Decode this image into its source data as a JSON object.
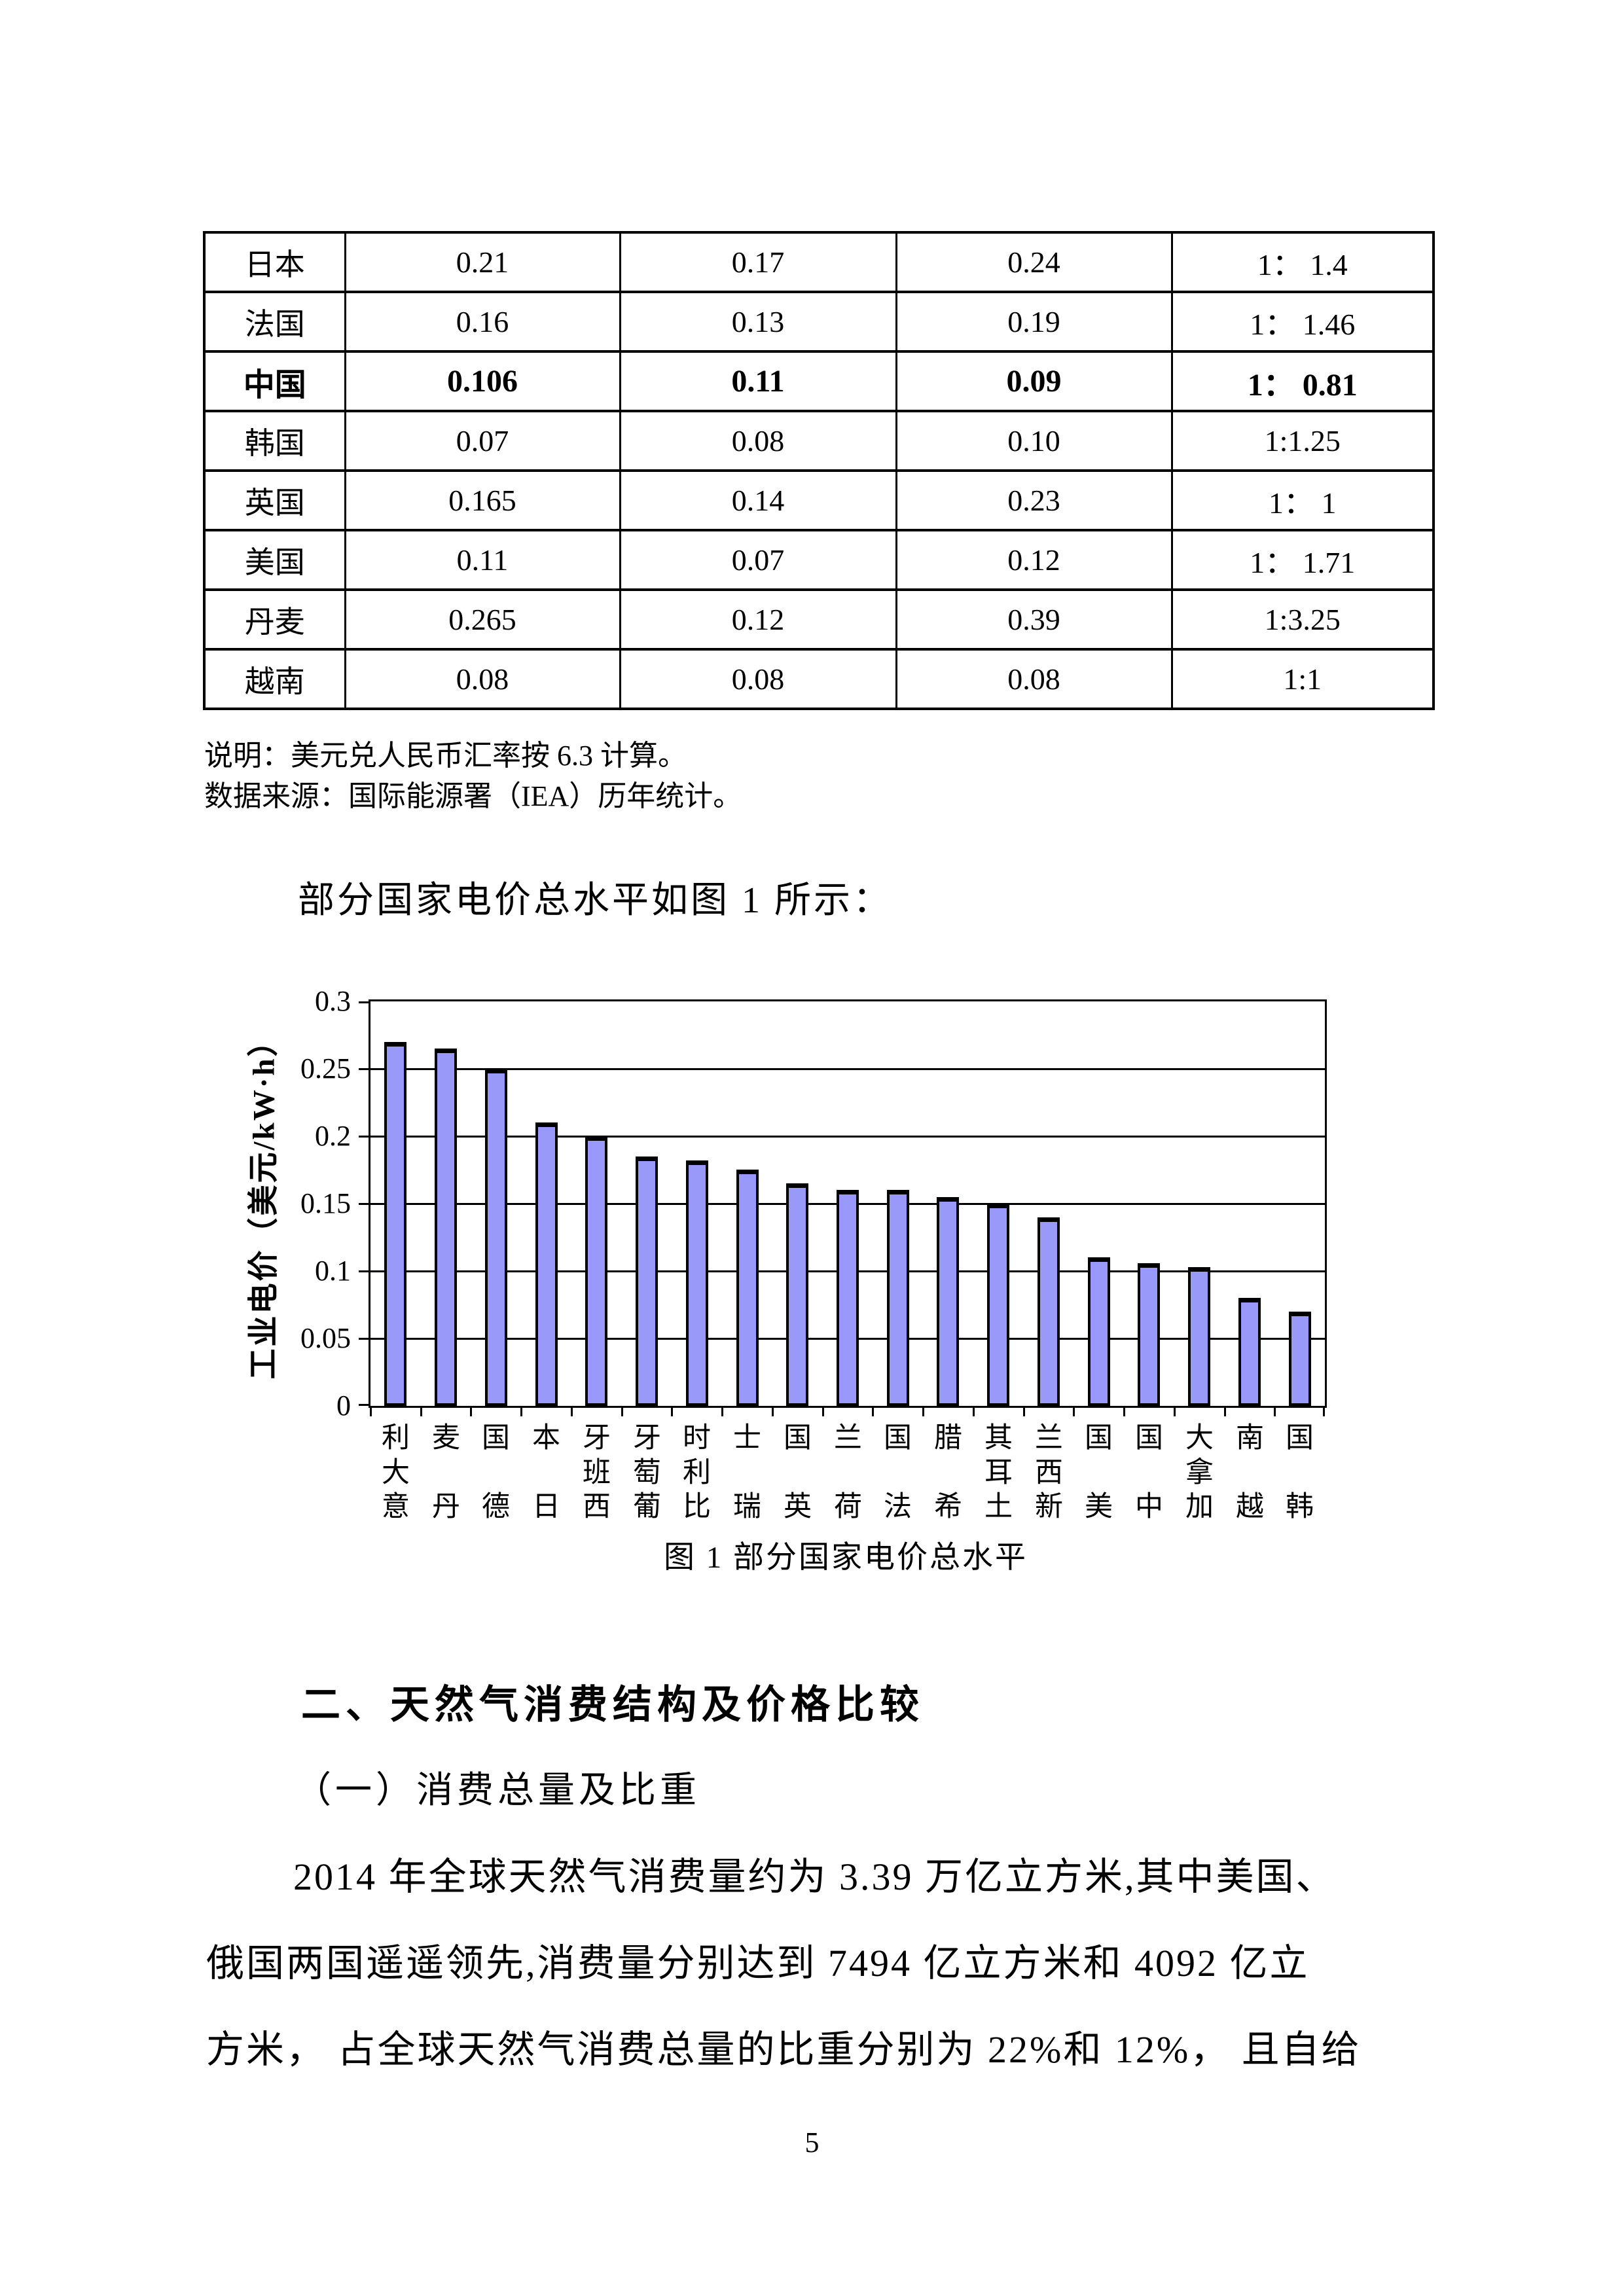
{
  "page": {
    "number": "5"
  },
  "table": {
    "rows": [
      {
        "country": "日本",
        "v1": "0.21",
        "v2": "0.17",
        "v3": "0.24",
        "ratio": "1： 1.4",
        "bold": false
      },
      {
        "country": "法国",
        "v1": "0.16",
        "v2": "0.13",
        "v3": "0.19",
        "ratio": "1： 1.46",
        "bold": false
      },
      {
        "country": "中国",
        "v1": "0.106",
        "v2": "0.11",
        "v3": "0.09",
        "ratio": "1： 0.81",
        "bold": true
      },
      {
        "country": "韩国",
        "v1": "0.07",
        "v2": "0.08",
        "v3": "0.10",
        "ratio": "1:1.25",
        "bold": false
      },
      {
        "country": "英国",
        "v1": "0.165",
        "v2": "0.14",
        "v3": "0.23",
        "ratio": "1： 1",
        "bold": false
      },
      {
        "country": "美国",
        "v1": "0.11",
        "v2": "0.07",
        "v3": "0.12",
        "ratio": "1： 1.71",
        "bold": false
      },
      {
        "country": "丹麦",
        "v1": "0.265",
        "v2": "0.12",
        "v3": "0.39",
        "ratio": "1:3.25",
        "bold": false
      },
      {
        "country": "越南",
        "v1": "0.08",
        "v2": "0.08",
        "v3": "0.08",
        "ratio": "1:1",
        "bold": false
      }
    ]
  },
  "notes": {
    "line1": "说明：美元兑人民币汇率按 6.3 计算。",
    "line2": "数据来源：国际能源署（IEA）历年统计。"
  },
  "intro_paragraph": "部分国家电价总水平如图 1 所示：",
  "chart_data": {
    "type": "bar",
    "title": "",
    "ylabel": "工业电价（美元/kW·h）",
    "xlabel": "",
    "categories": [
      "意大利",
      "丹麦",
      "德国",
      "日本",
      "西班牙",
      "葡萄牙",
      "比利时",
      "瑞士",
      "英国",
      "荷兰",
      "法国",
      "希腊",
      "土耳其",
      "新西兰",
      "美国",
      "中国",
      "加拿大",
      "越南",
      "韩国"
    ],
    "values": [
      0.27,
      0.265,
      0.25,
      0.21,
      0.2,
      0.185,
      0.182,
      0.175,
      0.165,
      0.16,
      0.16,
      0.155,
      0.15,
      0.14,
      0.11,
      0.106,
      0.103,
      0.08,
      0.07
    ],
    "ylim": [
      0,
      0.3
    ],
    "yticks": [
      {
        "v": 0,
        "label": "0"
      },
      {
        "v": 0.05,
        "label": "0.05"
      },
      {
        "v": 0.1,
        "label": "0.1"
      },
      {
        "v": 0.15,
        "label": "0.15"
      },
      {
        "v": 0.2,
        "label": "0.2"
      },
      {
        "v": 0.25,
        "label": "0.25"
      },
      {
        "v": 0.3,
        "label": "0.3"
      }
    ],
    "grid": true,
    "legend_position": "none",
    "bar_color": "#9999FA",
    "bar_border_color": "#000000",
    "x_label_orientation": "vertical-bottom-to-top"
  },
  "figure_caption": "图 1 部分国家电价总水平",
  "section": {
    "heading": "二、天然气消费结构及价格比较",
    "subheading": "（一）消费总量及比重",
    "body_lines": [
      "2014 年全球天然气消费量约为 3.39 万亿立方米,其中美国、",
      "俄国两国遥遥领先,消费量分别达到 7494 亿立方米和 4092 亿立",
      "方米， 占全球天然气消费总量的比重分别为 22%和 12%， 且自给"
    ]
  }
}
